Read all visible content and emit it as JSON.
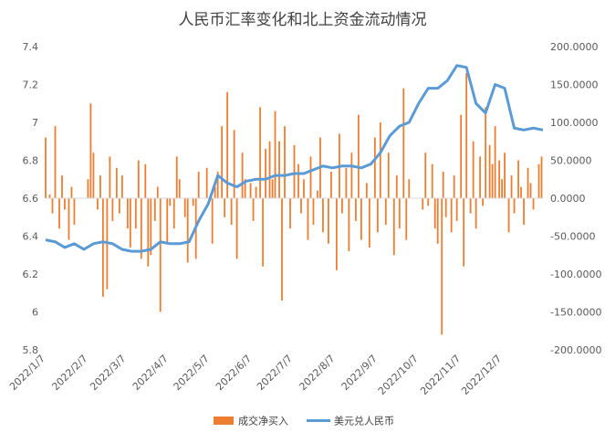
{
  "chart_data": {
    "type": "bar+line",
    "title": "人民币汇率变化和北上资金流动情况",
    "x_tick_labels": [
      "2022/1/7",
      "2022/2/7",
      "2022/3/7",
      "2022/4/7",
      "2022/5/7",
      "2022/6/7",
      "2022/7/7",
      "2022/8/7",
      "2022/9/7",
      "2022/10/7",
      "2022/11/7",
      "2022/12/7"
    ],
    "x_range": [
      "2022/1/7",
      "2023/1/6"
    ],
    "left_axis": {
      "ticks": [
        "5.8",
        "6",
        "6.2",
        "6.4",
        "6.6",
        "6.8",
        "7",
        "7.2",
        "7.4"
      ],
      "ylim": [
        5.8,
        7.4
      ]
    },
    "right_axis": {
      "ticks": [
        "-200.0000",
        "-150.0000",
        "-100.0000",
        "-50.0000",
        "0.0000",
        "50.0000",
        "100.0000",
        "150.0000",
        "200.0000"
      ],
      "ylim": [
        -200,
        200
      ]
    },
    "grid": false,
    "legend_position": "bottom",
    "series": [
      {
        "name": "成交净买入",
        "type": "bar",
        "axis": "right",
        "color": "#ED7D31",
        "points": [
          [
            "2022/1/7",
            80
          ],
          [
            "2022/1/10",
            5
          ],
          [
            "2022/1/12",
            -20
          ],
          [
            "2022/1/14",
            95
          ],
          [
            "2022/1/17",
            -40
          ],
          [
            "2022/1/19",
            30
          ],
          [
            "2022/1/21",
            -15
          ],
          [
            "2022/1/24",
            -55
          ],
          [
            "2022/1/26",
            15
          ],
          [
            "2022/1/28",
            -35
          ],
          [
            "2022/2/7",
            25
          ],
          [
            "2022/2/9",
            125
          ],
          [
            "2022/2/11",
            60
          ],
          [
            "2022/2/14",
            -15
          ],
          [
            "2022/2/16",
            30
          ],
          [
            "2022/2/18",
            -130
          ],
          [
            "2022/2/21",
            -120
          ],
          [
            "2022/2/23",
            55
          ],
          [
            "2022/2/25",
            -30
          ],
          [
            "2022/2/28",
            40
          ],
          [
            "2022/3/2",
            -20
          ],
          [
            "2022/3/4",
            30
          ],
          [
            "2022/3/8",
            -40
          ],
          [
            "2022/3/10",
            -65
          ],
          [
            "2022/3/14",
            -40
          ],
          [
            "2022/3/16",
            50
          ],
          [
            "2022/3/18",
            -80
          ],
          [
            "2022/3/21",
            45
          ],
          [
            "2022/3/23",
            -90
          ],
          [
            "2022/3/25",
            -75
          ],
          [
            "2022/3/28",
            -30
          ],
          [
            "2022/3/30",
            15
          ],
          [
            "2022/4/1",
            -150
          ],
          [
            "2022/4/6",
            -60
          ],
          [
            "2022/4/8",
            -10
          ],
          [
            "2022/4/11",
            -40
          ],
          [
            "2022/4/13",
            55
          ],
          [
            "2022/4/15",
            25
          ],
          [
            "2022/4/19",
            -25
          ],
          [
            "2022/4/21",
            -85
          ],
          [
            "2022/4/25",
            -10
          ],
          [
            "2022/4/27",
            -80
          ],
          [
            "2022/4/29",
            35
          ],
          [
            "2022/5/5",
            40
          ],
          [
            "2022/5/9",
            -60
          ],
          [
            "2022/5/11",
            15
          ],
          [
            "2022/5/13",
            35
          ],
          [
            "2022/5/16",
            95
          ],
          [
            "2022/5/18",
            -25
          ],
          [
            "2022/5/20",
            140
          ],
          [
            "2022/5/23",
            -35
          ],
          [
            "2022/5/25",
            90
          ],
          [
            "2022/5/27",
            -80
          ],
          [
            "2022/5/31",
            60
          ],
          [
            "2022/6/2",
            25
          ],
          [
            "2022/6/6",
            20
          ],
          [
            "2022/6/8",
            -30
          ],
          [
            "2022/6/10",
            15
          ],
          [
            "2022/6/13",
            120
          ],
          [
            "2022/6/15",
            -90
          ],
          [
            "2022/6/17",
            65
          ],
          [
            "2022/6/20",
            75
          ],
          [
            "2022/6/22",
            25
          ],
          [
            "2022/6/24",
            115
          ],
          [
            "2022/6/27",
            75
          ],
          [
            "2022/6/29",
            -135
          ],
          [
            "2022/7/1",
            95
          ],
          [
            "2022/7/5",
            -40
          ],
          [
            "2022/7/8",
            70
          ],
          [
            "2022/7/11",
            45
          ],
          [
            "2022/7/13",
            -20
          ],
          [
            "2022/7/15",
            25
          ],
          [
            "2022/7/18",
            -55
          ],
          [
            "2022/7/20",
            55
          ],
          [
            "2022/7/22",
            -35
          ],
          [
            "2022/7/25",
            10
          ],
          [
            "2022/7/27",
            80
          ],
          [
            "2022/7/29",
            -45
          ],
          [
            "2022/8/2",
            -60
          ],
          [
            "2022/8/4",
            35
          ],
          [
            "2022/8/8",
            -95
          ],
          [
            "2022/8/10",
            85
          ],
          [
            "2022/8/12",
            -20
          ],
          [
            "2022/8/15",
            40
          ],
          [
            "2022/8/17",
            -70
          ],
          [
            "2022/8/19",
            60
          ],
          [
            "2022/8/22",
            -30
          ],
          [
            "2022/8/24",
            110
          ],
          [
            "2022/8/26",
            -55
          ],
          [
            "2022/8/30",
            20
          ],
          [
            "2022/9/1",
            -65
          ],
          [
            "2022/9/5",
            80
          ],
          [
            "2022/9/7",
            -45
          ],
          [
            "2022/9/9",
            100
          ],
          [
            "2022/9/13",
            -35
          ],
          [
            "2022/9/15",
            60
          ],
          [
            "2022/9/19",
            -75
          ],
          [
            "2022/9/21",
            30
          ],
          [
            "2022/9/23",
            -40
          ],
          [
            "2022/9/26",
            145
          ],
          [
            "2022/9/28",
            -55
          ],
          [
            "2022/9/30",
            25
          ],
          [
            "2022/10/10",
            -15
          ],
          [
            "2022/10/12",
            60
          ],
          [
            "2022/10/14",
            -10
          ],
          [
            "2022/10/17",
            45
          ],
          [
            "2022/10/19",
            -40
          ],
          [
            "2022/10/21",
            -60
          ],
          [
            "2022/10/24",
            -180
          ],
          [
            "2022/10/25",
            35
          ],
          [
            "2022/10/27",
            -25
          ],
          [
            "2022/10/31",
            -45
          ],
          [
            "2022/11/2",
            30
          ],
          [
            "2022/11/4",
            -30
          ],
          [
            "2022/11/7",
            110
          ],
          [
            "2022/11/9",
            -90
          ],
          [
            "2022/11/11",
            165
          ],
          [
            "2022/11/14",
            -20
          ],
          [
            "2022/11/16",
            75
          ],
          [
            "2022/11/18",
            -40
          ],
          [
            "2022/11/21",
            55
          ],
          [
            "2022/11/23",
            -10
          ],
          [
            "2022/11/25",
            120
          ],
          [
            "2022/11/28",
            70
          ],
          [
            "2022/11/30",
            45
          ],
          [
            "2022/12/2",
            95
          ],
          [
            "2022/12/5",
            50
          ],
          [
            "2022/12/7",
            25
          ],
          [
            "2022/12/9",
            60
          ],
          [
            "2022/12/12",
            -45
          ],
          [
            "2022/12/14",
            30
          ],
          [
            "2022/12/16",
            -20
          ],
          [
            "2022/12/19",
            50
          ],
          [
            "2022/12/21",
            15
          ],
          [
            "2022/12/23",
            -35
          ],
          [
            "2022/12/26",
            40
          ],
          [
            "2022/12/28",
            20
          ],
          [
            "2022/12/30",
            -15
          ],
          [
            "2023/1/3",
            45
          ],
          [
            "2023/1/5",
            55
          ]
        ]
      },
      {
        "name": "美元兑人民币",
        "type": "line",
        "axis": "left",
        "color": "#5B9BD5",
        "points": [
          [
            "2022/1/7",
            6.38
          ],
          [
            "2022/1/14",
            6.37
          ],
          [
            "2022/1/21",
            6.34
          ],
          [
            "2022/1/28",
            6.36
          ],
          [
            "2022/2/4",
            6.33
          ],
          [
            "2022/2/11",
            6.36
          ],
          [
            "2022/2/18",
            6.37
          ],
          [
            "2022/2/25",
            6.36
          ],
          [
            "2022/3/4",
            6.33
          ],
          [
            "2022/3/11",
            6.32
          ],
          [
            "2022/3/18",
            6.32
          ],
          [
            "2022/3/25",
            6.33
          ],
          [
            "2022/4/1",
            6.37
          ],
          [
            "2022/4/8",
            6.36
          ],
          [
            "2022/4/15",
            6.36
          ],
          [
            "2022/4/22",
            6.37
          ],
          [
            "2022/4/29",
            6.48
          ],
          [
            "2022/5/6",
            6.57
          ],
          [
            "2022/5/13",
            6.72
          ],
          [
            "2022/5/20",
            6.68
          ],
          [
            "2022/5/27",
            6.66
          ],
          [
            "2022/6/3",
            6.69
          ],
          [
            "2022/6/10",
            6.7
          ],
          [
            "2022/6/17",
            6.7
          ],
          [
            "2022/6/24",
            6.72
          ],
          [
            "2022/7/1",
            6.72
          ],
          [
            "2022/7/8",
            6.73
          ],
          [
            "2022/7/15",
            6.73
          ],
          [
            "2022/7/22",
            6.75
          ],
          [
            "2022/7/29",
            6.77
          ],
          [
            "2022/8/5",
            6.76
          ],
          [
            "2022/8/12",
            6.77
          ],
          [
            "2022/8/19",
            6.77
          ],
          [
            "2022/8/26",
            6.76
          ],
          [
            "2022/9/2",
            6.78
          ],
          [
            "2022/9/9",
            6.84
          ],
          [
            "2022/9/16",
            6.93
          ],
          [
            "2022/9/23",
            6.98
          ],
          [
            "2022/9/30",
            7.0
          ],
          [
            "2022/10/7",
            7.1
          ],
          [
            "2022/10/14",
            7.18
          ],
          [
            "2022/10/21",
            7.18
          ],
          [
            "2022/10/28",
            7.22
          ],
          [
            "2022/11/4",
            7.3
          ],
          [
            "2022/11/11",
            7.29
          ],
          [
            "2022/11/18",
            7.1
          ],
          [
            "2022/11/25",
            7.05
          ],
          [
            "2022/12/2",
            7.2
          ],
          [
            "2022/12/9",
            7.18
          ],
          [
            "2022/12/16",
            6.97
          ],
          [
            "2022/12/23",
            6.96
          ],
          [
            "2022/12/30",
            6.97
          ],
          [
            "2023/1/6",
            6.96
          ]
        ]
      }
    ]
  }
}
